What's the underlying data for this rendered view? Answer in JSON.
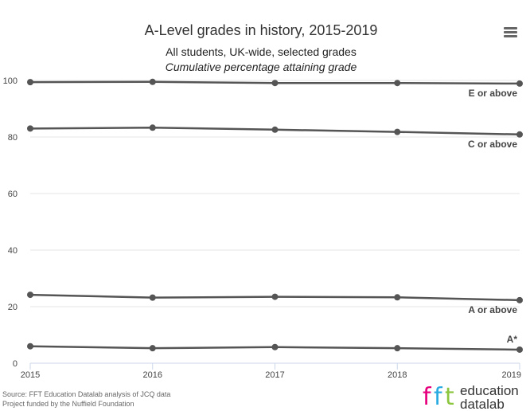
{
  "chart_data": {
    "type": "line",
    "title": "A-Level grades in history, 2015-2019",
    "subtitle": "All students, UK-wide, selected grades",
    "subtitle2": "Cumulative percentage attaining grade",
    "x": [
      "2015",
      "2016",
      "2017",
      "2018",
      "2019"
    ],
    "xlabel": "",
    "ylabel": "",
    "ylim": [
      0,
      100
    ],
    "yticks": [
      "0",
      "20",
      "40",
      "60",
      "80",
      "100"
    ],
    "grid": true,
    "legend": "inline labels at right end of lines",
    "series": [
      {
        "name": "E or above",
        "values": [
          99.4,
          99.5,
          99.1,
          99.1,
          98.9
        ]
      },
      {
        "name": "C or above",
        "values": [
          83.0,
          83.3,
          82.6,
          81.8,
          80.9
        ]
      },
      {
        "name": "A or above",
        "values": [
          24.2,
          23.2,
          23.5,
          23.3,
          22.3
        ]
      },
      {
        "name": "A*",
        "values": [
          6.0,
          5.3,
          5.7,
          5.3,
          4.8
        ]
      }
    ],
    "line_color": "#555555"
  },
  "source": {
    "line1": "Source: FFT Education Datalab analysis of JCQ data",
    "line2": "Project funded by the Nuffield Foundation"
  },
  "logo": {
    "mark": "fft",
    "word1": "education",
    "word2": "datalab",
    "colors": [
      "#e6007e",
      "#29abe2",
      "#8cc63f"
    ]
  },
  "menu": {
    "icon": "hamburger-menu-icon"
  }
}
